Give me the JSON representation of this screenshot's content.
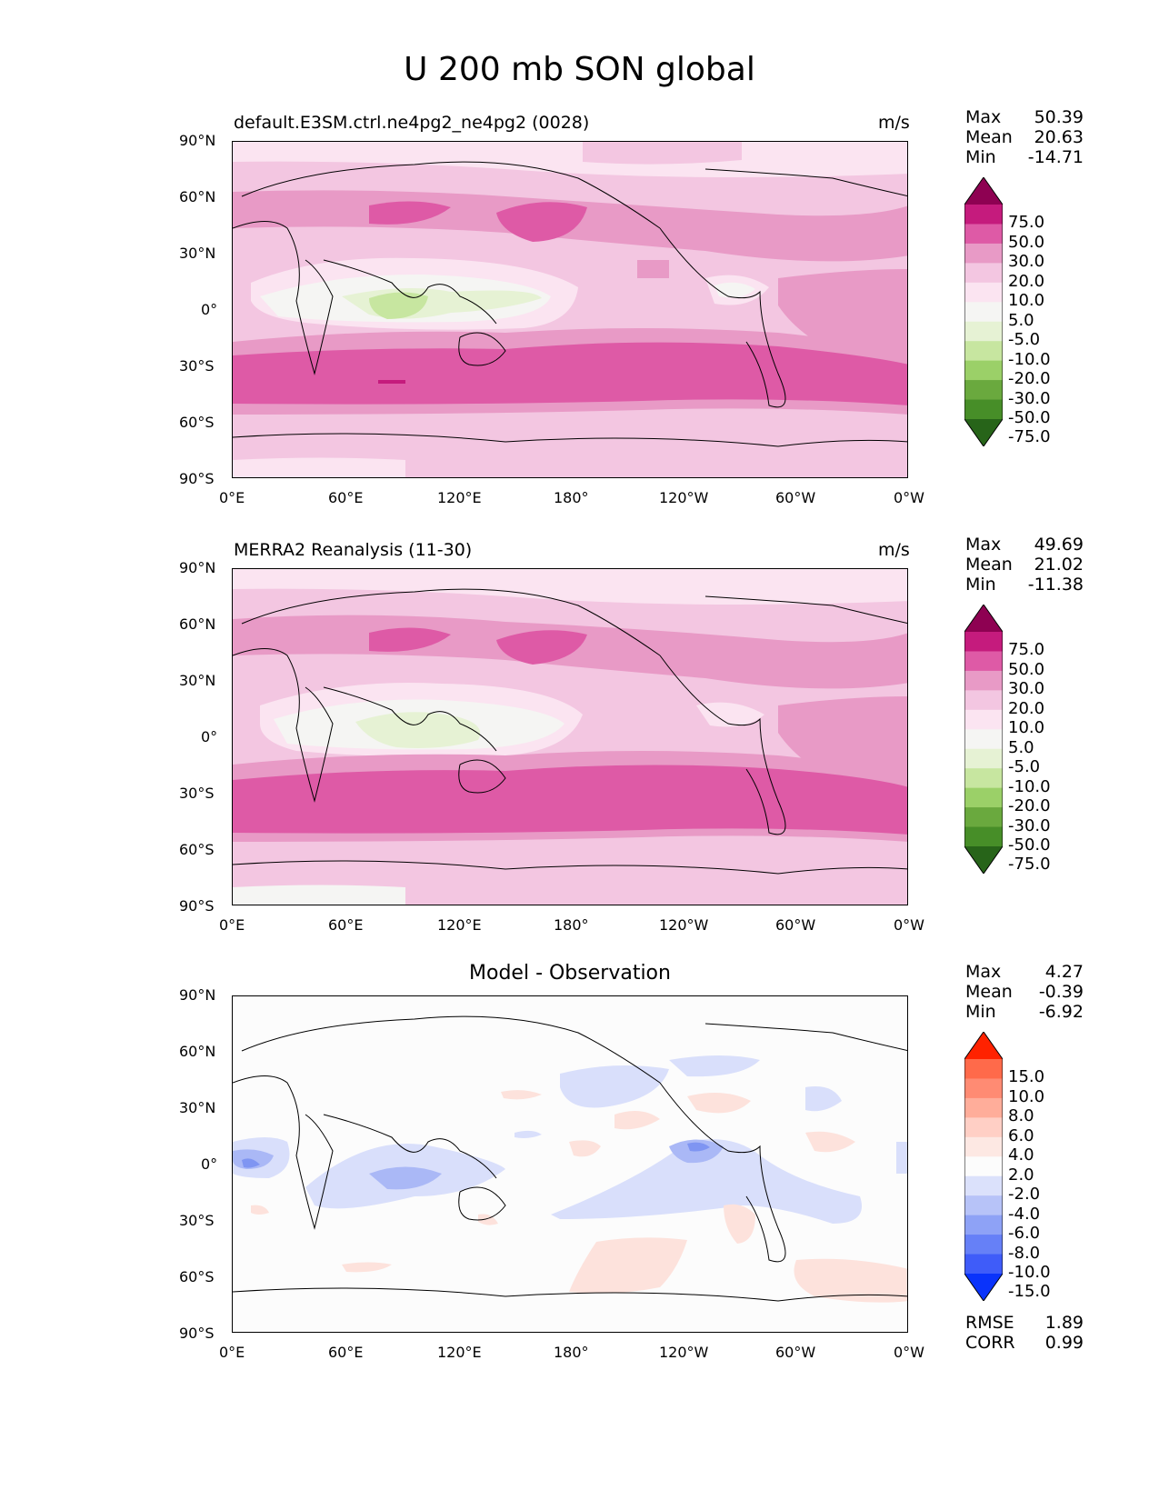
{
  "figure": {
    "title": "U 200 mb SON global"
  },
  "axes": {
    "lat_ticks": [
      "90°N",
      "60°N",
      "30°N",
      "0°",
      "30°S",
      "60°S",
      "90°S"
    ],
    "lon_ticks": [
      "0°E",
      "60°E",
      "120°E",
      "180°",
      "120°W",
      "60°W",
      "0°W"
    ]
  },
  "panels": [
    {
      "title_left": "default.E3SM.ctrl.ne4pg2_ne4pg2 (0028)",
      "units": "m/s",
      "stats": [
        {
          "label": "Max",
          "value": "50.39"
        },
        {
          "label": "Mean",
          "value": "20.63"
        },
        {
          "label": "Min",
          "value": "-14.71"
        }
      ],
      "colorbar": {
        "levels": [
          "75.0",
          "50.0",
          "30.0",
          "20.0",
          "10.0",
          "5.0",
          "-5.0",
          "-10.0",
          "-20.0",
          "-30.0",
          "-50.0",
          "-75.0"
        ],
        "colors": [
          "#8e0152",
          "#c51b7d",
          "#de5aa6",
          "#e89ac6",
          "#f3c6e1",
          "#fbe4f1",
          "#f5f5f3",
          "#e6f2d4",
          "#c7e6a0",
          "#9bd068",
          "#6aa93e",
          "#478e28",
          "#276419"
        ]
      }
    },
    {
      "title_left": "MERRA2 Reanalysis (11-30)",
      "units": "m/s",
      "stats": [
        {
          "label": "Max",
          "value": "49.69"
        },
        {
          "label": "Mean",
          "value": "21.02"
        },
        {
          "label": "Min",
          "value": "-11.38"
        }
      ],
      "colorbar": {
        "levels": [
          "75.0",
          "50.0",
          "30.0",
          "20.0",
          "10.0",
          "5.0",
          "-5.0",
          "-10.0",
          "-20.0",
          "-30.0",
          "-50.0",
          "-75.0"
        ],
        "colors": [
          "#8e0152",
          "#c51b7d",
          "#de5aa6",
          "#e89ac6",
          "#f3c6e1",
          "#fbe4f1",
          "#f5f5f3",
          "#e6f2d4",
          "#c7e6a0",
          "#9bd068",
          "#6aa93e",
          "#478e28",
          "#276419"
        ]
      }
    },
    {
      "title_center": "Model - Observation",
      "stats": [
        {
          "label": "Max",
          "value": "4.27"
        },
        {
          "label": "Mean",
          "value": "-0.39"
        },
        {
          "label": "Min",
          "value": "-6.92"
        }
      ],
      "extra_stats": [
        {
          "label": "RMSE",
          "value": "1.89"
        },
        {
          "label": "CORR",
          "value": "0.99"
        }
      ],
      "colorbar": {
        "levels": [
          "15.0",
          "10.0",
          "8.0",
          "6.0",
          "4.0",
          "2.0",
          "-2.0",
          "-4.0",
          "-6.0",
          "-8.0",
          "-10.0",
          "-15.0"
        ],
        "colors": [
          "#ff2200",
          "#ff6a4a",
          "#ff8b73",
          "#ffad9a",
          "#ffcfc5",
          "#fde8e3",
          "#fcfcfc",
          "#dbe1fb",
          "#b7c3f8",
          "#8ea2f6",
          "#6680f7",
          "#3f5cf9",
          "#0a33fb"
        ]
      }
    }
  ],
  "colors": {
    "model_field": {
      "z50": "#de5aa6",
      "z30": "#e89ac6",
      "z20": "#f3c6e1",
      "z10": "#fbe4f1",
      "z5": "#f5f5f3",
      "zneg5": "#e6f2d4",
      "zneg10": "#c7e6a0"
    },
    "diff_field": {
      "pos2": "#fde2dc",
      "neg2": "#d9dffb",
      "neg4": "#aab8f6",
      "neg6": "#7f95f2",
      "neutral": "#fcfcfc"
    }
  }
}
